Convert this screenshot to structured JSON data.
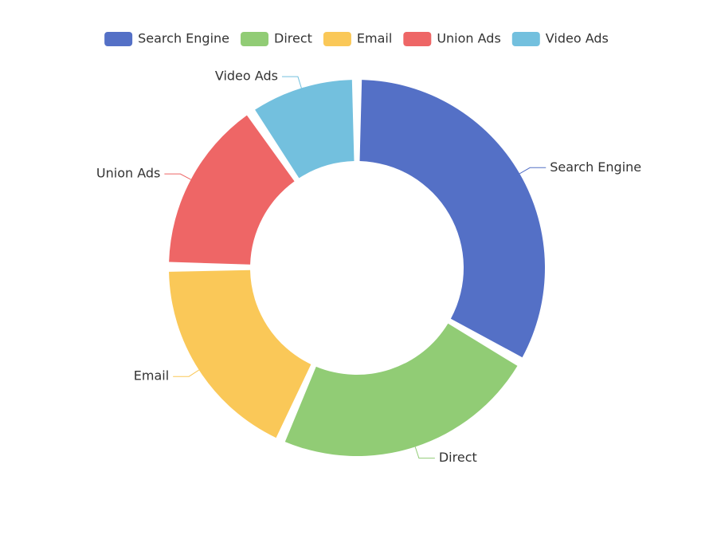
{
  "chart_data": {
    "type": "pie",
    "donut": true,
    "categories": [
      "Search Engine",
      "Direct",
      "Email",
      "Union Ads",
      "Video Ads"
    ],
    "values": [
      1048,
      735,
      580,
      484,
      300
    ],
    "colors": [
      "#5470c6",
      "#91cc75",
      "#fac858",
      "#ee6666",
      "#73c0de"
    ],
    "legend": "top"
  }
}
